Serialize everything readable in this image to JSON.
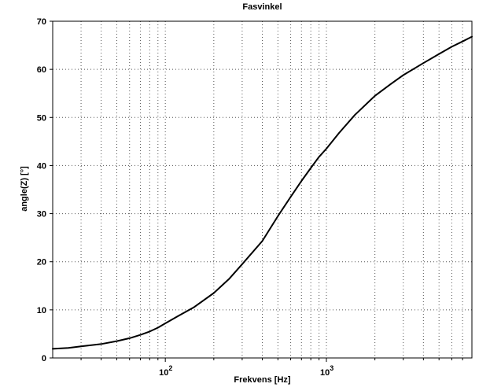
{
  "chart_data": {
    "type": "line",
    "title": "Fasvinkel",
    "xlabel": "Frekvens [Hz]",
    "ylabel": "angle(Z) [°]",
    "x_scale": "log",
    "xlim": [
      20,
      8000
    ],
    "ylim": [
      0,
      70
    ],
    "grid": true,
    "legend": "none",
    "line_color": "#000000",
    "grid_color": "#555555",
    "axis_color": "#000000",
    "background_color": "#ffffff",
    "y_ticks": [
      0,
      10,
      20,
      30,
      40,
      50,
      60,
      70
    ],
    "x_major_ticks": [
      100,
      1000
    ],
    "x_major_tick_labels": [
      {
        "base": "10",
        "exp": "2"
      },
      {
        "base": "10",
        "exp": "3"
      }
    ],
    "x_minor_ticks": [
      30,
      40,
      50,
      60,
      70,
      80,
      90,
      200,
      300,
      400,
      500,
      600,
      700,
      800,
      900,
      2000,
      3000,
      4000,
      5000,
      6000,
      7000
    ],
    "series": [
      {
        "name": "angle(Z)",
        "x": [
          20,
          25,
          30,
          40,
          50,
          60,
          70,
          80,
          90,
          100,
          120,
          150,
          200,
          250,
          300,
          400,
          500,
          600,
          700,
          800,
          900,
          1000,
          1200,
          1500,
          2000,
          2500,
          3000,
          4000,
          5000,
          6000,
          7000,
          8000
        ],
        "y": [
          1.9,
          2.1,
          2.4,
          2.9,
          3.5,
          4.1,
          4.8,
          5.5,
          6.3,
          7.2,
          8.7,
          10.5,
          13.5,
          16.5,
          19.5,
          24.3,
          29.5,
          33.5,
          36.8,
          39.5,
          41.8,
          43.5,
          46.8,
          50.5,
          54.5,
          56.9,
          58.8,
          61.3,
          63.2,
          64.7,
          65.8,
          66.8
        ]
      }
    ]
  }
}
